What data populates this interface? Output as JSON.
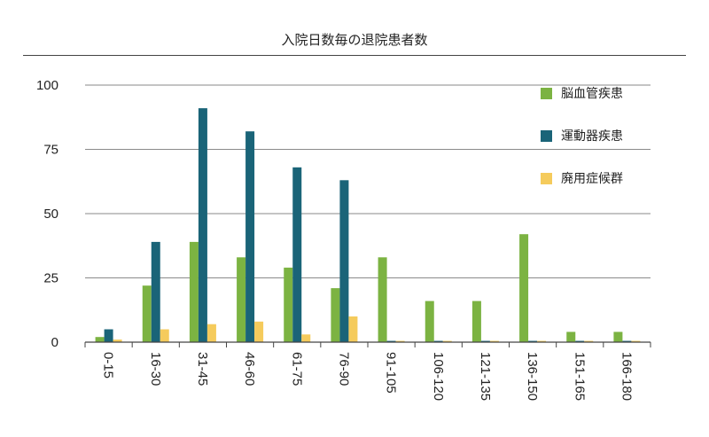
{
  "chart_data": {
    "type": "bar",
    "title": "入院日数毎の退院患者数",
    "xlabel": "",
    "ylabel": "",
    "ylim": [
      0,
      100
    ],
    "yticks": [
      0,
      25,
      50,
      75,
      100
    ],
    "grid": true,
    "legend_position": "top-right",
    "categories": [
      "0-15",
      "16-30",
      "31-45",
      "46-60",
      "61-75",
      "76-90",
      "91-105",
      "106-120",
      "121-135",
      "136-150",
      "151-165",
      "166-180"
    ],
    "series": [
      {
        "name": "脳血管疾患",
        "color": "#7cb342",
        "values": [
          2,
          22,
          39,
          33,
          29,
          21,
          33,
          16,
          16,
          42,
          4,
          4
        ]
      },
      {
        "name": "運動器疾患",
        "color": "#1a6478",
        "values": [
          5,
          39,
          91,
          82,
          68,
          63,
          0.5,
          0.5,
          0.5,
          0.5,
          0.5,
          0.5
        ]
      },
      {
        "name": "廃用症候群",
        "color": "#f5cb5c",
        "values": [
          1,
          5,
          7,
          8,
          3,
          10,
          0.5,
          0.5,
          0.5,
          0.5,
          0.5,
          0.5
        ]
      }
    ]
  }
}
